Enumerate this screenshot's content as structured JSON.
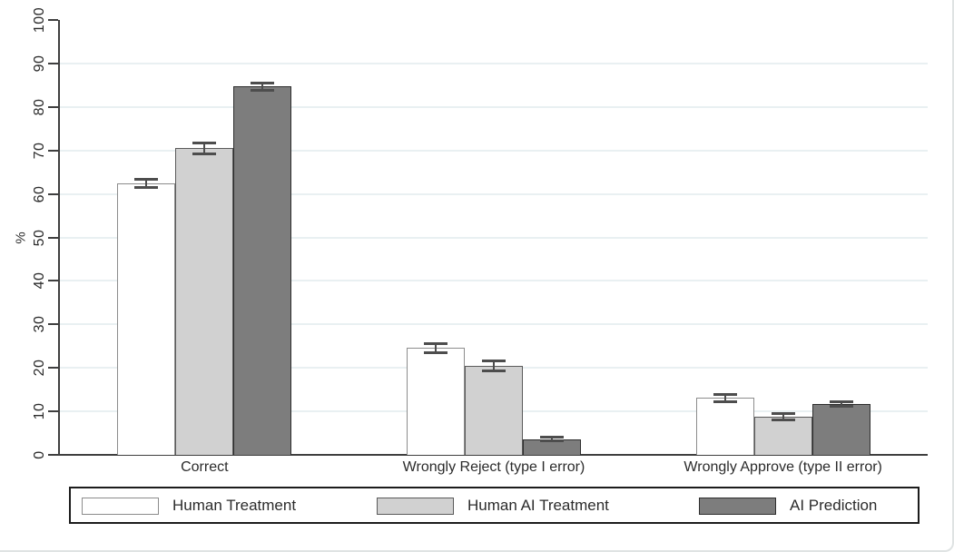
{
  "chart_data": {
    "type": "bar",
    "title": "",
    "xlabel": "",
    "ylabel": "%",
    "ylim": [
      0,
      100
    ],
    "yticks": [
      0,
      10,
      20,
      30,
      40,
      50,
      60,
      70,
      80,
      90,
      100
    ],
    "grid": "horizontal gridlines at 10..90, very light",
    "legend_position": "bottom-boxed",
    "categories": [
      "Correct",
      "Wrongly Reject (type I error)",
      "Wrongly Approve (type II error)"
    ],
    "series": [
      {
        "name": "Human Treatment",
        "fill": "#ffffff",
        "border": "#8c8c8c",
        "values": [
          62.4,
          24.6,
          13.1
        ],
        "ci_low": [
          61.5,
          23.5,
          12.3
        ],
        "ci_high": [
          63.3,
          25.6,
          13.9
        ]
      },
      {
        "name": "Human AI Treatment",
        "fill": "#d1d1d1",
        "border": "#5a5a5a",
        "values": [
          70.5,
          20.4,
          8.8
        ],
        "ci_low": [
          69.3,
          19.3,
          8.0
        ],
        "ci_high": [
          71.7,
          21.6,
          9.6
        ]
      },
      {
        "name": "AI Prediction",
        "fill": "#7d7d7d",
        "border": "#2e2e2e",
        "values": [
          84.7,
          3.6,
          11.7
        ],
        "ci_low": [
          83.9,
          3.2,
          11.2
        ],
        "ci_high": [
          85.5,
          4.0,
          12.2
        ]
      }
    ],
    "colors": {
      "gridline": "#e9f0f2",
      "axis": "#3f3f3f",
      "text": "#2b2b2b",
      "error_bar": "#4d4d4d",
      "legend_border": "#1c1c1c"
    }
  }
}
